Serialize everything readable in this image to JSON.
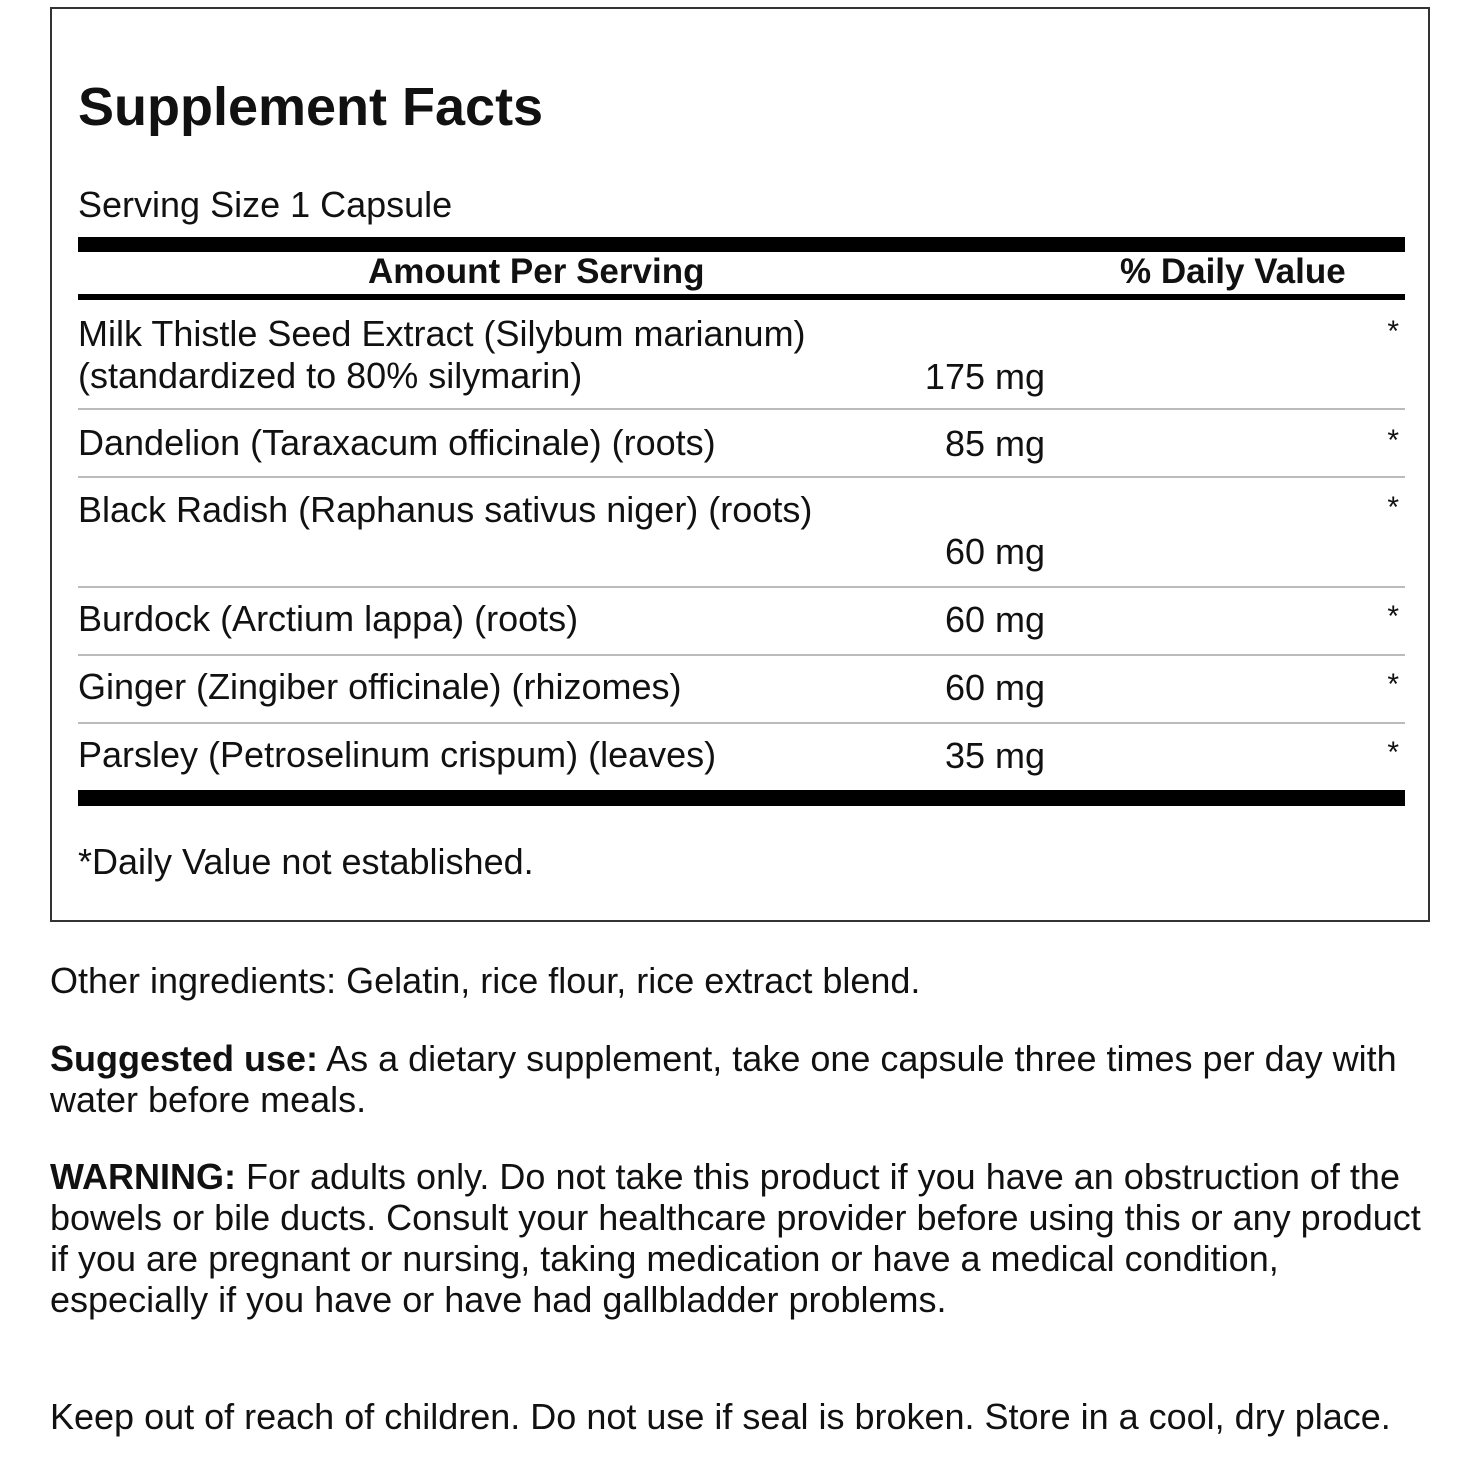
{
  "facts": {
    "title": "Supplement Facts",
    "serving_size": "Serving Size 1 Capsule",
    "amount_header": "Amount Per Serving",
    "dv_header": "% Daily Value",
    "rows": [
      {
        "name_line1": "Milk Thistle Seed Extract (Silybum marianum)",
        "name_line2": "(standardized to 80% silymarin)",
        "amount": "175 mg",
        "dv": "*"
      },
      {
        "name_line1": "Dandelion (Taraxacum officinale) (roots)",
        "amount": "85 mg",
        "dv": "*"
      },
      {
        "name_line1": "Black Radish (Raphanus sativus niger) (roots)",
        "amount": "60 mg",
        "dv": "*"
      },
      {
        "name_line1": "Burdock (Arctium lappa) (roots)",
        "amount": "60 mg",
        "dv": "*"
      },
      {
        "name_line1": "Ginger (Zingiber officinale) (rhizomes)",
        "amount": "60 mg",
        "dv": "*"
      },
      {
        "name_line1": "Parsley (Petroselinum crispum) (leaves)",
        "amount": "35 mg",
        "dv": "*"
      }
    ],
    "footnote": "*Daily Value not established."
  },
  "other_ingredients": "Other ingredients: Gelatin, rice flour, rice extract blend.",
  "suggested_use": {
    "label": "Suggested use:",
    "text": " As a dietary supplement, take one capsule three times per day with water before meals."
  },
  "warning": {
    "label": "WARNING:",
    "text": " For adults only. Do not take this product if you have an obstruction of the bowels or bile ducts. Consult your healthcare provider before using this or any product if you are pregnant or nursing, taking medication or have a medical condition, especially if you have or have had gallbladder problems."
  },
  "storage": "Keep out of reach of children. Do not use if seal is broken. Store in a cool, dry place."
}
